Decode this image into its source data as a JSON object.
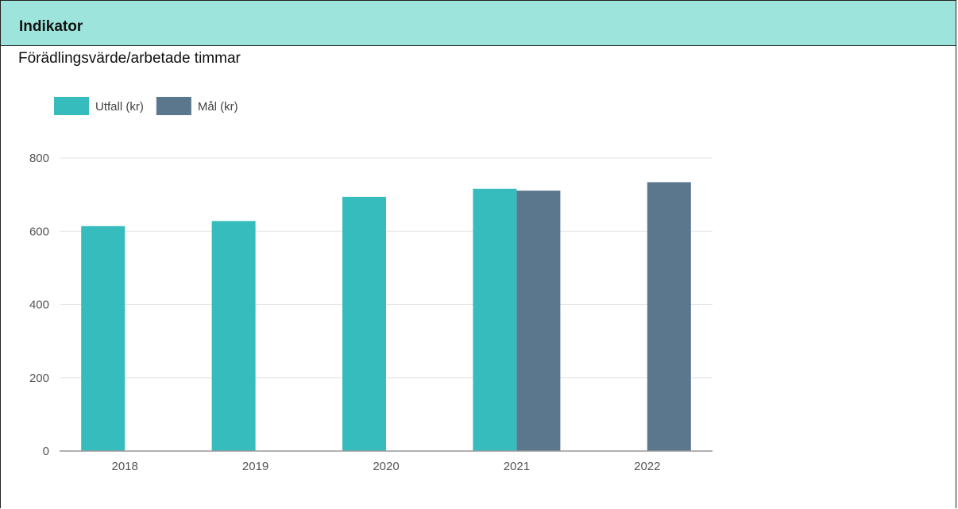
{
  "header": {
    "title": "Indikator"
  },
  "chart_data": {
    "type": "bar",
    "title": "Förädlingsvärde/arbetade timmar",
    "xlabel": "",
    "ylabel": "",
    "categories": [
      "2018",
      "2019",
      "2020",
      "2021",
      "2022"
    ],
    "series": [
      {
        "name": "Utfall (kr)",
        "color": "#36bcbd",
        "values": [
          614,
          628,
          694,
          716,
          null
        ]
      },
      {
        "name": "Mål (kr)",
        "color": "#5b778e",
        "values": [
          null,
          null,
          null,
          711,
          734
        ]
      }
    ],
    "ylim": [
      0,
      800
    ],
    "yticks": [
      0,
      200,
      400,
      600,
      800
    ],
    "grid": true,
    "legend": "top-left"
  }
}
